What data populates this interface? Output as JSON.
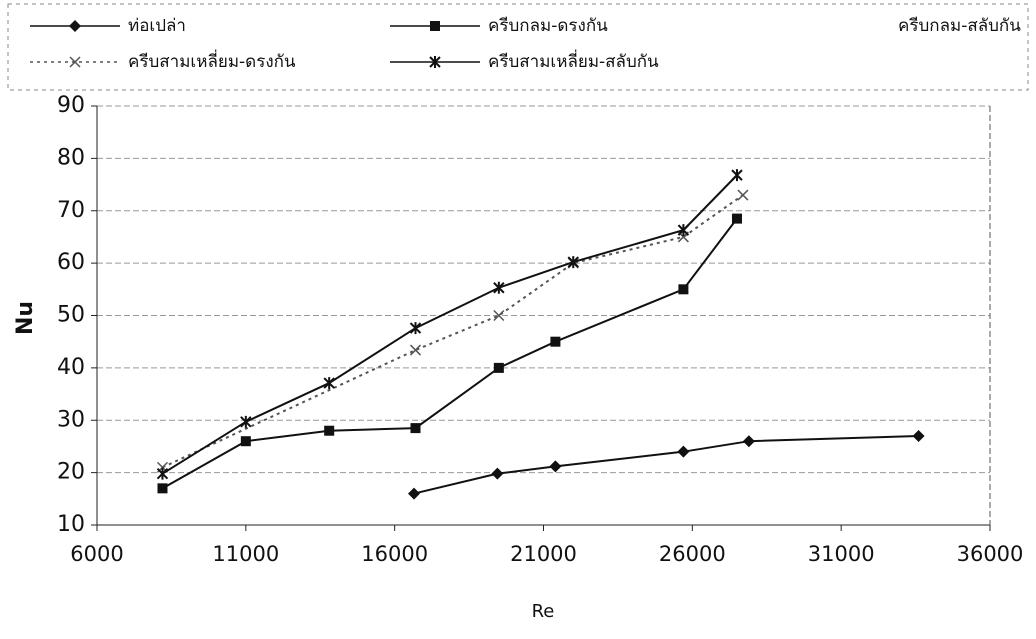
{
  "chart_data": {
    "type": "line",
    "x_label": "Re",
    "y_label": "Nu",
    "xlim": [
      6000,
      36000
    ],
    "xticks": [
      6000,
      11000,
      16000,
      21000,
      26000,
      31000,
      36000
    ],
    "ylim": [
      10,
      90
    ],
    "yticks": [
      10,
      20,
      30,
      40,
      50,
      60,
      70,
      80,
      90
    ],
    "grid": true,
    "legend": "top",
    "series": [
      {
        "name": "ท่อเปล่า",
        "color": "#111111",
        "marker": "diamond",
        "line_style": "solid",
        "x": [
          16650,
          19450,
          21400,
          25700,
          27900,
          33600
        ],
        "values": [
          16,
          19.8,
          21.2,
          24,
          26,
          27
        ]
      },
      {
        "name": "ครีบกลม-ดรงกัน",
        "color": "#111111",
        "marker": "square",
        "line_style": "solid",
        "x": [
          8200,
          11000,
          13800,
          16700,
          19500,
          21400,
          25700,
          27500
        ],
        "values": [
          17,
          26,
          28,
          28.5,
          40,
          45,
          55,
          68.5
        ]
      },
      {
        "name": "ครีบกลม-สลับกัน",
        "color": "#111111",
        "marker": "none",
        "line_style": "none",
        "x": [],
        "values": []
      },
      {
        "name": "ครีบสามเหลี่ยม-ดรงกัน",
        "color": "#555555",
        "marker": "x",
        "line_style": "dotted",
        "x": [
          8200,
          16700,
          19500,
          22000,
          25700,
          27700
        ],
        "values": [
          21,
          43.4,
          50,
          60,
          65,
          73
        ]
      },
      {
        "name": "ครีบสามเหลี่ยม-สลับกัน",
        "color": "#111111",
        "marker": "star",
        "line_style": "solid",
        "x": [
          8200,
          11000,
          13800,
          16700,
          19500,
          22000,
          25700,
          27500
        ],
        "values": [
          19.8,
          29.7,
          37.1,
          47.6,
          55.3,
          60.2,
          66.3,
          76.8
        ]
      }
    ]
  }
}
